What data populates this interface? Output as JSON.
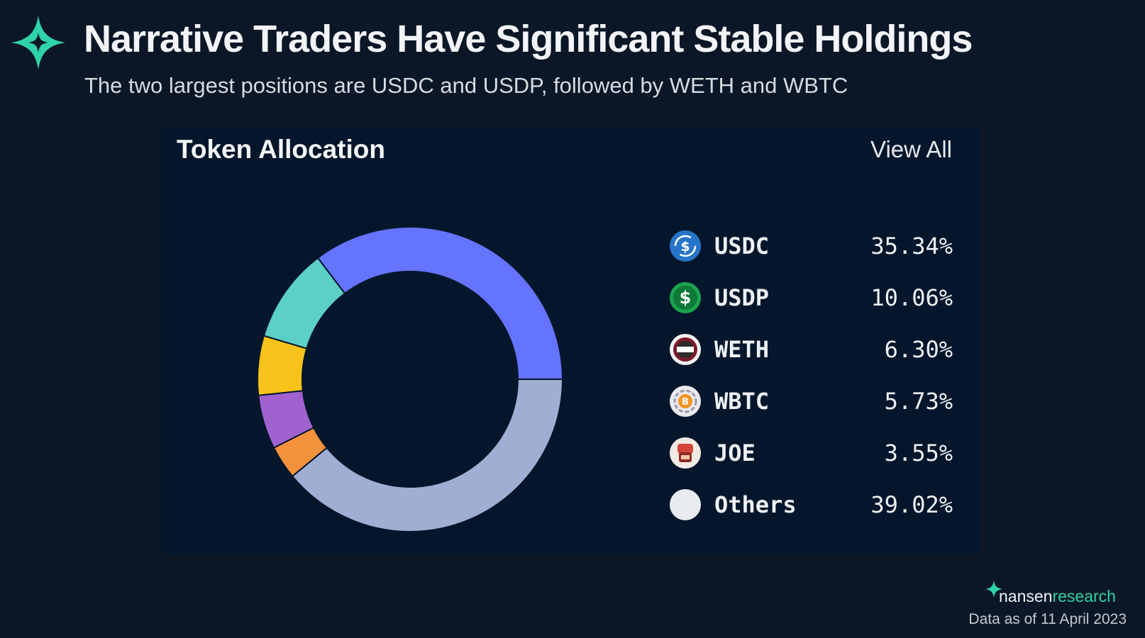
{
  "header": {
    "title": "Narrative Traders Have Significant Stable Holdings",
    "subtitle": "The two largest positions are USDC and USDP, followed by WETH and WBTC"
  },
  "card": {
    "title": "Token Allocation",
    "view_all": "View All"
  },
  "chart_data": {
    "type": "pie",
    "variant": "donut",
    "title": "Token Allocation",
    "legend_position": "right",
    "slices": [
      {
        "label": "USDC",
        "value": 35.34,
        "display": "35.34%",
        "color": "#6474ff",
        "icon": "usdc-icon"
      },
      {
        "label": "USDP",
        "value": 10.06,
        "display": "10.06%",
        "color": "#5cd0c7",
        "icon": "usdp-icon"
      },
      {
        "label": "WETH",
        "value": 6.3,
        "display": "6.30%",
        "color": "#f7c21a",
        "icon": "weth-icon"
      },
      {
        "label": "WBTC",
        "value": 5.73,
        "display": "5.73%",
        "color": "#9f62cf",
        "icon": "wbtc-icon"
      },
      {
        "label": "JOE",
        "value": 3.55,
        "display": "3.55%",
        "color": "#f4913c",
        "icon": "joe-icon"
      },
      {
        "label": "Others",
        "value": 39.02,
        "display": "39.02%",
        "color": "#9fafd4",
        "icon": "others-icon"
      }
    ]
  },
  "footer": {
    "brand_primary": "nansen",
    "brand_secondary": "research",
    "date_note": "Data as of 11 April 2023"
  },
  "colors": {
    "background": "#0b1726",
    "card": "#04162b",
    "accent": "#2fd3a8"
  }
}
